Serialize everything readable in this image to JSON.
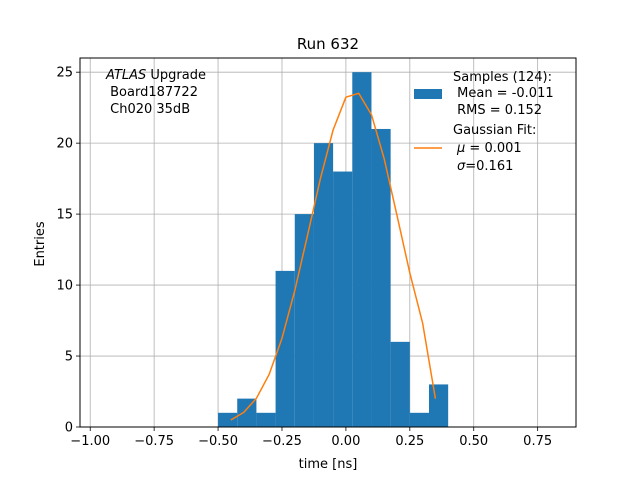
{
  "chart_data": {
    "type": "bar",
    "title": "Run 632",
    "xlabel": "time [ns]",
    "ylabel": "Entries",
    "xlim": [
      -1.04,
      0.9
    ],
    "ylim": [
      0,
      26
    ],
    "x_ticks": [
      -1.0,
      -0.75,
      -0.5,
      -0.25,
      0.0,
      0.25,
      0.5,
      0.75
    ],
    "x_tick_labels": [
      "−1.00",
      "−0.75",
      "−0.50",
      "−0.25",
      "0.00",
      "0.25",
      "0.50",
      "0.75"
    ],
    "y_ticks": [
      0,
      5,
      10,
      15,
      20,
      25
    ],
    "y_tick_labels": [
      "0",
      "5",
      "10",
      "15",
      "20",
      "25"
    ],
    "grid": true,
    "histogram": {
      "bin_edges": [
        -0.5,
        -0.425,
        -0.35,
        -0.275,
        -0.2,
        -0.125,
        -0.05,
        0.025,
        0.1,
        0.175,
        0.25,
        0.325,
        0.4
      ],
      "counts": [
        1,
        2,
        1,
        11,
        15,
        20,
        18,
        25,
        21,
        6,
        1,
        3
      ],
      "color": "#1f77b4"
    },
    "fit_curve": {
      "x": [
        -0.45,
        -0.4,
        -0.35,
        -0.3,
        -0.25,
        -0.2,
        -0.15,
        -0.1,
        -0.05,
        0.0,
        0.05,
        0.1,
        0.15,
        0.2,
        0.25,
        0.3,
        0.35
      ],
      "y": [
        0.49,
        1.02,
        2.02,
        3.71,
        6.26,
        9.62,
        13.5,
        17.47,
        20.93,
        23.24,
        23.51,
        22.0,
        18.9,
        14.91,
        10.86,
        7.33,
        2.0
      ],
      "color": "#ff7f0e"
    },
    "annotation": {
      "line1_italic": "ATLAS",
      "line1_rest": " Upgrade",
      "line2": " Board187722",
      "line3": " Ch020 35dB"
    },
    "legend": {
      "location": "upper right",
      "samples": {
        "line1": "Samples (124):",
        "line2": " Mean = -0.011",
        "line3": " RMS = 0.152"
      },
      "fit": {
        "line1": "Gaussian Fit:",
        "line2_symbol": "μ",
        "line2_rest": " = 0.001",
        "line3_symbol": "σ",
        "line3_rest": "=0.161"
      }
    }
  }
}
